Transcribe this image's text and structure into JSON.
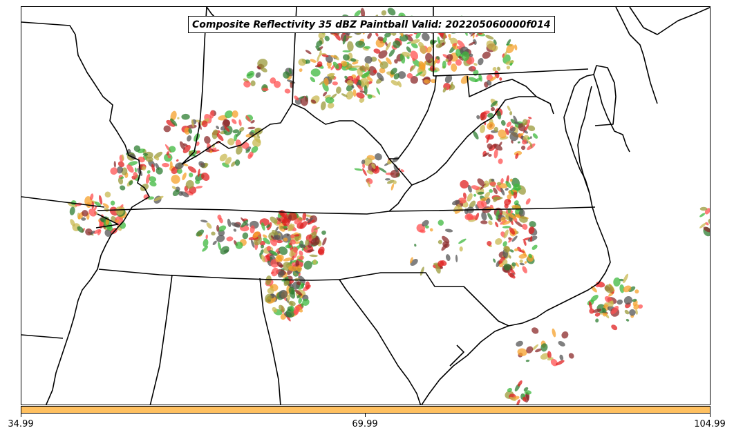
{
  "map": {
    "title": "Composite Reflectivity 35 dBZ Paintball Valid: 202205060000f014",
    "basemap": "eastern-united-states-state-borders-and-coastlines",
    "region": "Southeastern / Mid-Atlantic United States",
    "field": "composite reflectivity >= 35 dBZ per ensemble member (paintball)",
    "member_colors": [
      "#3db83d",
      "#e02020",
      "#f5a02a",
      "#8b2a2a",
      "#9a9a3a",
      "#2e7d32",
      "#555555",
      "#c8b850",
      "#ff5050"
    ],
    "background_color": "#ffffff"
  },
  "colorbar": {
    "color": "#ffc060",
    "ticks": [
      "34.99",
      "69.99",
      "104.99"
    ]
  }
}
